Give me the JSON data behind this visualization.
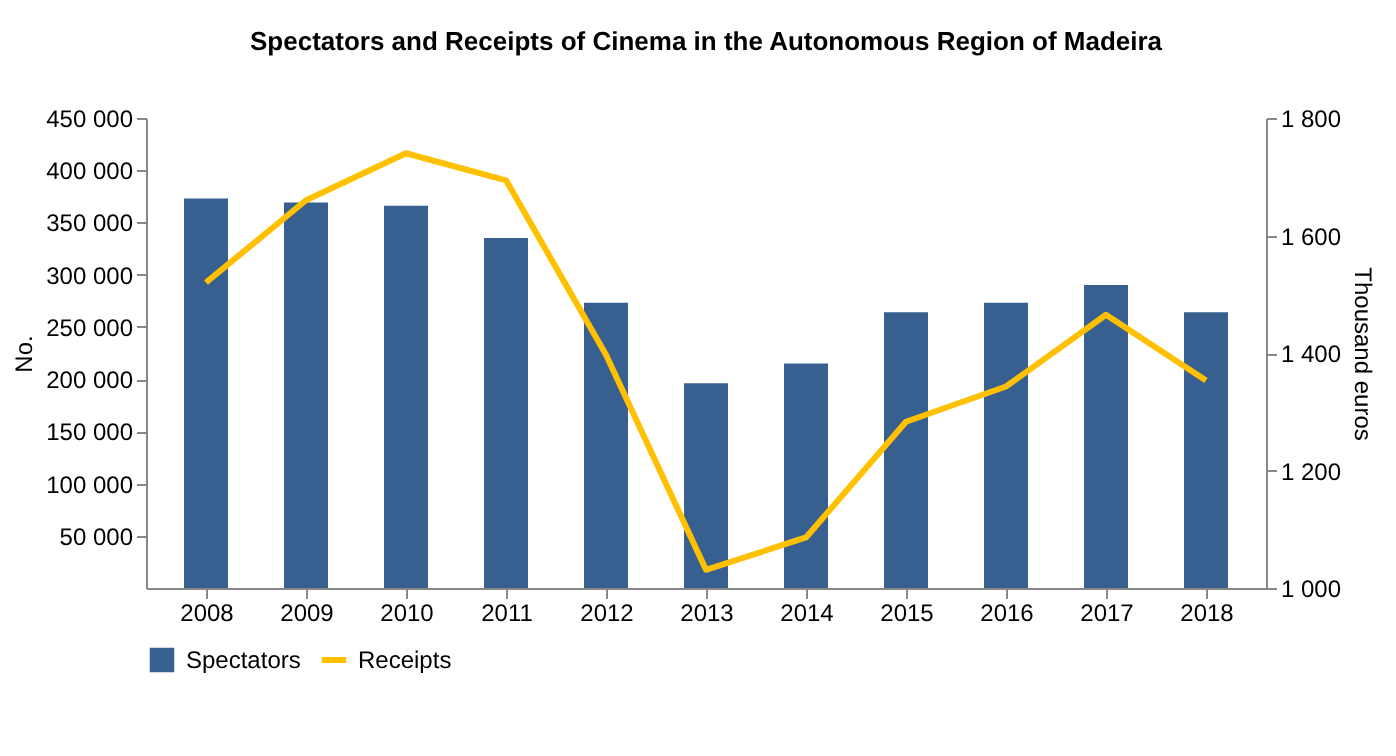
{
  "chart_data": {
    "type": "bar",
    "title": "Spectators and Receipts of Cinema in the Autonomous Region of Madeira",
    "ylabel": "No.",
    "y2label": "Thousand euros",
    "categories": [
      "2008",
      "2009",
      "2010",
      "2011",
      "2012",
      "2013",
      "2014",
      "2015",
      "2016",
      "2017",
      "2018"
    ],
    "series": [
      {
        "name": "Spectators",
        "color": "#375f8f",
        "values": [
          373000,
          369000,
          366000,
          335000,
          273000,
          196000,
          215000,
          264000,
          273000,
          290000,
          264000
        ]
      },
      {
        "name": "Receipts",
        "type": "line",
        "axis": "y2",
        "color": "#ffc000",
        "values": [
          1520,
          1660,
          1740,
          1694,
          1397,
          1031,
          1086,
          1283,
          1343,
          1465,
          1353
        ]
      }
    ],
    "ylim": [
      0,
      450000
    ],
    "yticks": [
      {
        "value": 50000,
        "label": "50 000"
      },
      {
        "value": 100000,
        "label": "100 000"
      },
      {
        "value": 150000,
        "label": "150 000"
      },
      {
        "value": 200000,
        "label": "200 000"
      },
      {
        "value": 250000,
        "label": "250 000"
      },
      {
        "value": 300000,
        "label": "300 000"
      },
      {
        "value": 350000,
        "label": "350 000"
      },
      {
        "value": 400000,
        "label": "400 000"
      },
      {
        "value": 450000,
        "label": "450 000"
      }
    ],
    "y2lim": [
      1000,
      1800
    ],
    "y2ticks": [
      {
        "value": 1000,
        "label": "1 000"
      },
      {
        "value": 1200,
        "label": "1 200"
      },
      {
        "value": 1400,
        "label": "1 400"
      },
      {
        "value": 1600,
        "label": "1 600"
      },
      {
        "value": 1800,
        "label": "1 800"
      }
    ],
    "grid": false,
    "legend": "bottom",
    "marker": "none",
    "line_style": "solid"
  }
}
